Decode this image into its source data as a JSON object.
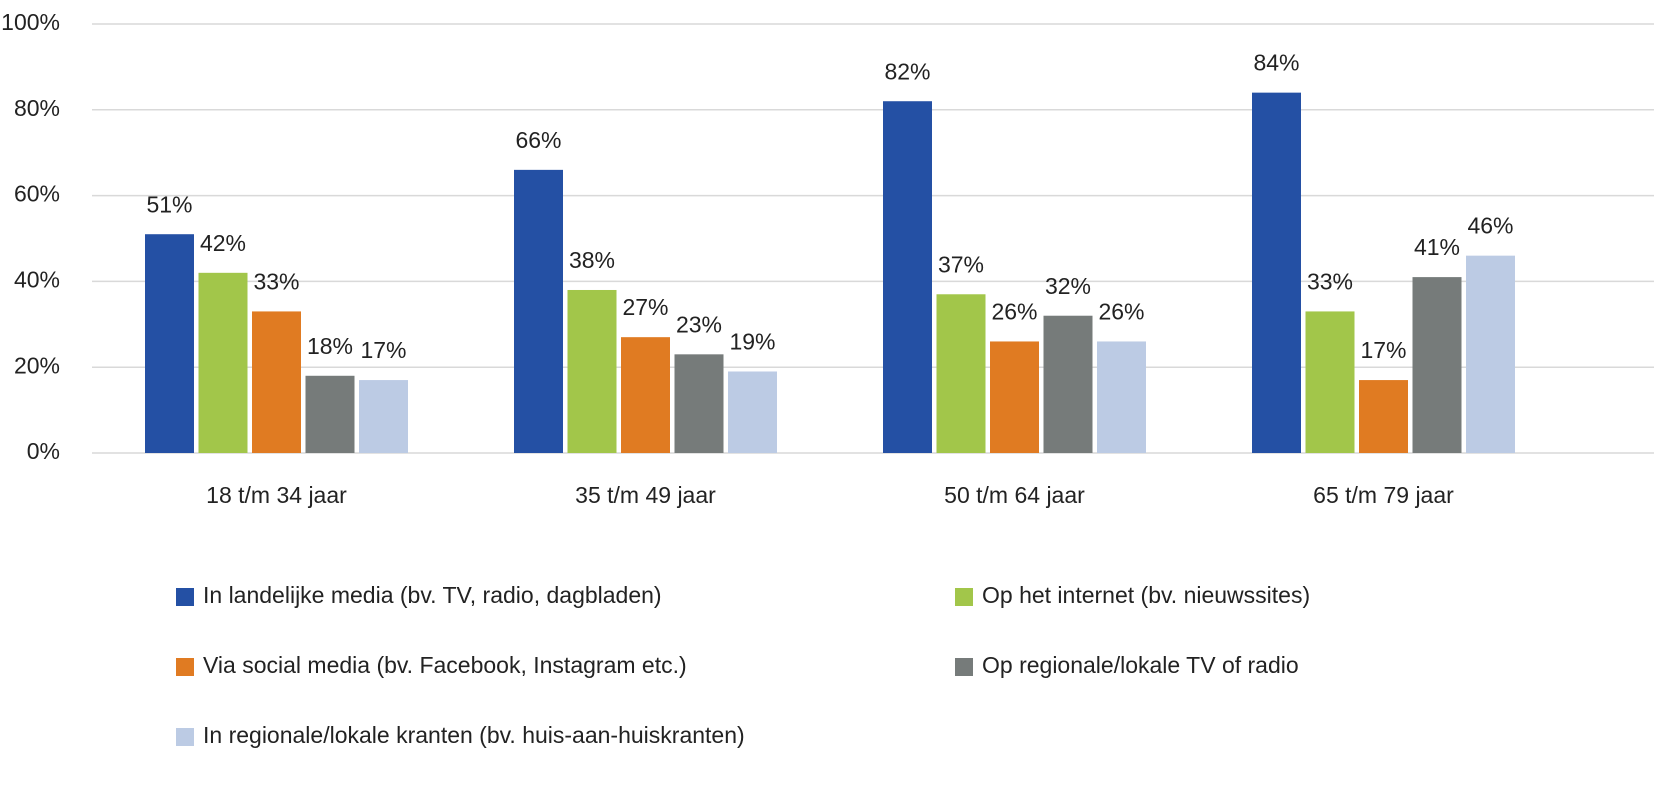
{
  "chart_data": {
    "type": "bar",
    "categories": [
      "18 t/m 34 jaar",
      "35 t/m 49 jaar",
      "50 t/m 64 jaar",
      "65 t/m 79 jaar"
    ],
    "series": [
      {
        "name": "In landelijke media (bv. TV, radio, dagbladen)",
        "color": "#2450a4",
        "values": [
          51,
          66,
          82,
          84
        ],
        "value_labels": [
          "51%",
          "66%",
          "82%",
          "84%"
        ]
      },
      {
        "name": "Op het internet (bv. nieuwssites)",
        "color": "#a2c64a",
        "values": [
          42,
          38,
          37,
          33
        ],
        "value_labels": [
          "42%",
          "38%",
          "37%",
          "33%"
        ]
      },
      {
        "name": "Via social media (bv. Facebook, Instagram etc.)",
        "color": "#e07b22",
        "values": [
          33,
          27,
          26,
          17
        ],
        "value_labels": [
          "33%",
          "27%",
          "26%",
          "17%"
        ]
      },
      {
        "name": "Op regionale/lokale TV of radio",
        "color": "#767b7a",
        "values": [
          18,
          23,
          32,
          41
        ],
        "value_labels": [
          "18%",
          "23%",
          "32%",
          "41%"
        ]
      },
      {
        "name": "In regionale/lokale kranten (bv. huis-aan-huiskranten)",
        "color": "#bccbe4",
        "values": [
          17,
          19,
          26,
          46
        ],
        "value_labels": [
          "17%",
          "19%",
          "26%",
          "46%"
        ]
      }
    ],
    "ylim": [
      0,
      100
    ],
    "yticks": [
      {
        "value": 0,
        "label": "0%"
      },
      {
        "value": 20,
        "label": "20%"
      },
      {
        "value": 40,
        "label": "40%"
      },
      {
        "value": 60,
        "label": "60%"
      },
      {
        "value": 80,
        "label": "80%"
      },
      {
        "value": 100,
        "label": "100%"
      }
    ],
    "grid": true
  }
}
